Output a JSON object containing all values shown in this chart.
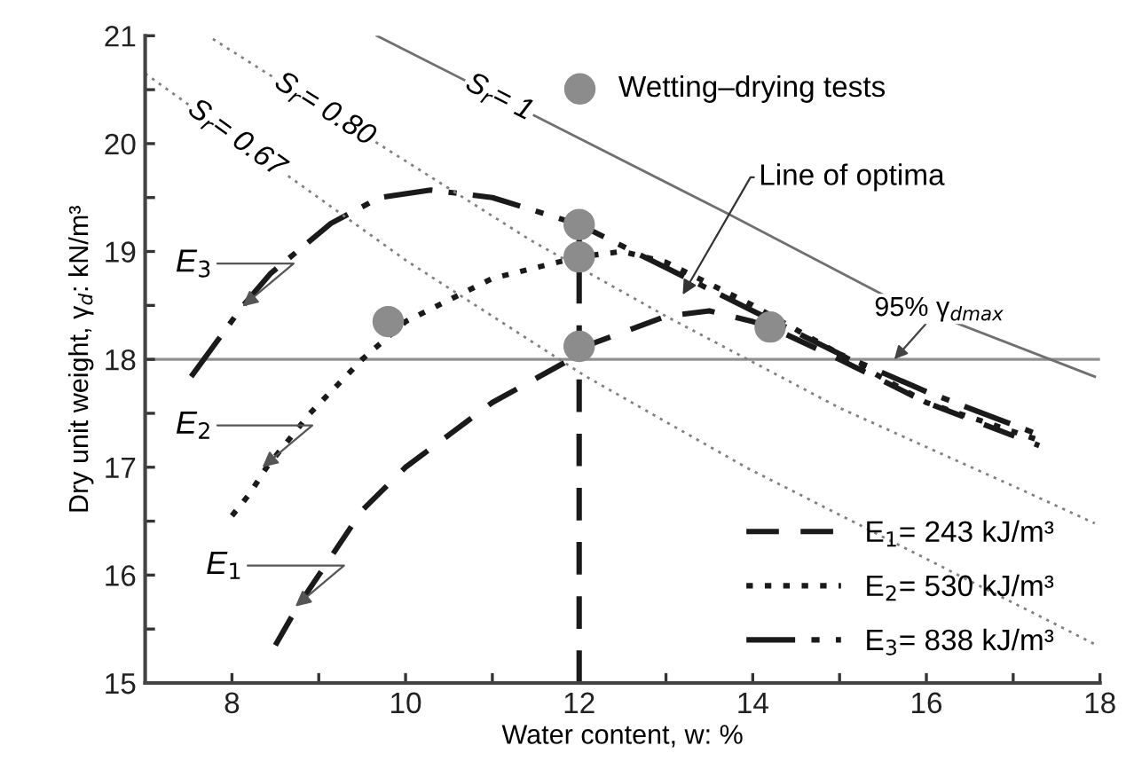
{
  "chart_data": {
    "type": "line",
    "xlabel": "Water content, w: %",
    "ylabel": "Dry unit weight, γ$_{d}$: kN/m³",
    "xlim": [
      7,
      18
    ],
    "ylim": [
      15,
      21
    ],
    "xticks": [
      8,
      {
        "value": 9,
        "label": null
      },
      10,
      {
        "value": 11,
        "label": null
      },
      12,
      {
        "value": 13,
        "label": null
      },
      14,
      {
        "value": 15,
        "label": null
      },
      16,
      {
        "value": 17,
        "label": null
      },
      18
    ],
    "yticks": [
      15,
      {
        "value": 15.5,
        "label": null
      },
      16,
      {
        "value": 16.5,
        "label": null
      },
      17,
      {
        "value": 17.5,
        "label": null
      },
      18,
      {
        "value": 18.5,
        "label": null
      },
      19,
      {
        "value": 19.5,
        "label": null
      },
      20,
      {
        "value": 20.5,
        "label": null
      },
      21
    ],
    "grid": false,
    "legend": "bottom right",
    "marker": "none",
    "series": [
      {
        "name": "E$_{1}$= 243 kJ/m³",
        "color": "#1a1a1a",
        "line_style": "dashed",
        "x": [
          8.5,
          8.75,
          9.5,
          10,
          11,
          11.9,
          12,
          13,
          13.5,
          14,
          14.2,
          15,
          16,
          17.3
        ],
        "values": [
          15.35,
          15.7,
          16.6,
          17.0,
          17.6,
          18.0,
          18.1,
          18.4,
          18.45,
          18.35,
          18.3,
          18.0,
          17.6,
          17.2
        ]
      },
      {
        "name": "E$_{2}$= 530 kJ/m³",
        "color": "#1a1a1a",
        "line_style": "dotted",
        "x": [
          8.0,
          8.2,
          8.4,
          8.9,
          9.5,
          10,
          11,
          12,
          12.5,
          13,
          14,
          15,
          16,
          17.3
        ],
        "values": [
          16.55,
          16.75,
          17.0,
          17.5,
          18.0,
          18.35,
          18.75,
          18.95,
          19.0,
          18.9,
          18.5,
          18.05,
          17.6,
          17.25
        ]
      },
      {
        "name": "E$_{3}$= 838 kJ/m³",
        "color": "#1a1a1a",
        "line_style": "dashdot",
        "x": [
          7.53,
          8.12,
          8.45,
          9.14,
          9.7,
          10.29,
          11,
          12,
          13,
          14,
          15,
          16,
          17.3
        ],
        "values": [
          17.84,
          18.49,
          18.8,
          19.26,
          19.5,
          19.57,
          19.5,
          19.25,
          18.85,
          18.45,
          18.05,
          17.7,
          17.3
        ]
      },
      {
        "name": "S$_{r}$= 1",
        "color": "#707070",
        "line_style": "solid",
        "x": [
          9.67,
          13.69,
          15.5,
          17.94
        ],
        "values": [
          21.0,
          19.36,
          18.6,
          17.84
        ]
      },
      {
        "name": "S$_{r}$= 0.80",
        "color": "#808080",
        "line_style": "dotted",
        "x": [
          7.78,
          11.45,
          13,
          15,
          17.18,
          17.94
        ],
        "values": [
          20.97,
          19.1,
          18.4,
          17.55,
          16.76,
          16.48
        ]
      },
      {
        "name": "S$_{r}$= 0.67",
        "color": "#808080",
        "line_style": "dotted",
        "x": [
          7.0,
          10,
          12.06,
          13.92,
          16,
          17.94
        ],
        "values": [
          20.65,
          18.92,
          17.85,
          17.0,
          16.15,
          15.36
        ]
      },
      {
        "color": "#1a1a1a",
        "line_style": "dashed",
        "x": [
          12,
          12
        ],
        "values": [
          15,
          19.25
        ]
      },
      {
        "name": "Wetting–drying tests",
        "type": "scatter",
        "marker": "circle",
        "color": "#8c8c8c",
        "x": [
          9.8,
          12,
          12,
          12,
          14.2
        ],
        "values": [
          18.35,
          19.25,
          18.95,
          18.12,
          18.3
        ]
      }
    ],
    "ref_lines": [
      {
        "axis": "y",
        "value": 18,
        "label": "95% γ$_{dmax}$",
        "color": "#909090",
        "line_style": "solid"
      }
    ],
    "annotations": [
      "Line of optima",
      {
        "text": "E$_{3}$",
        "x": 8.12,
        "y": 18.49
      },
      {
        "text": "E$_{2}$",
        "x": 8.35,
        "y": 17.0
      },
      {
        "text": "E$_{1}$",
        "x": 8.73,
        "y": 15.71
      }
    ]
  }
}
